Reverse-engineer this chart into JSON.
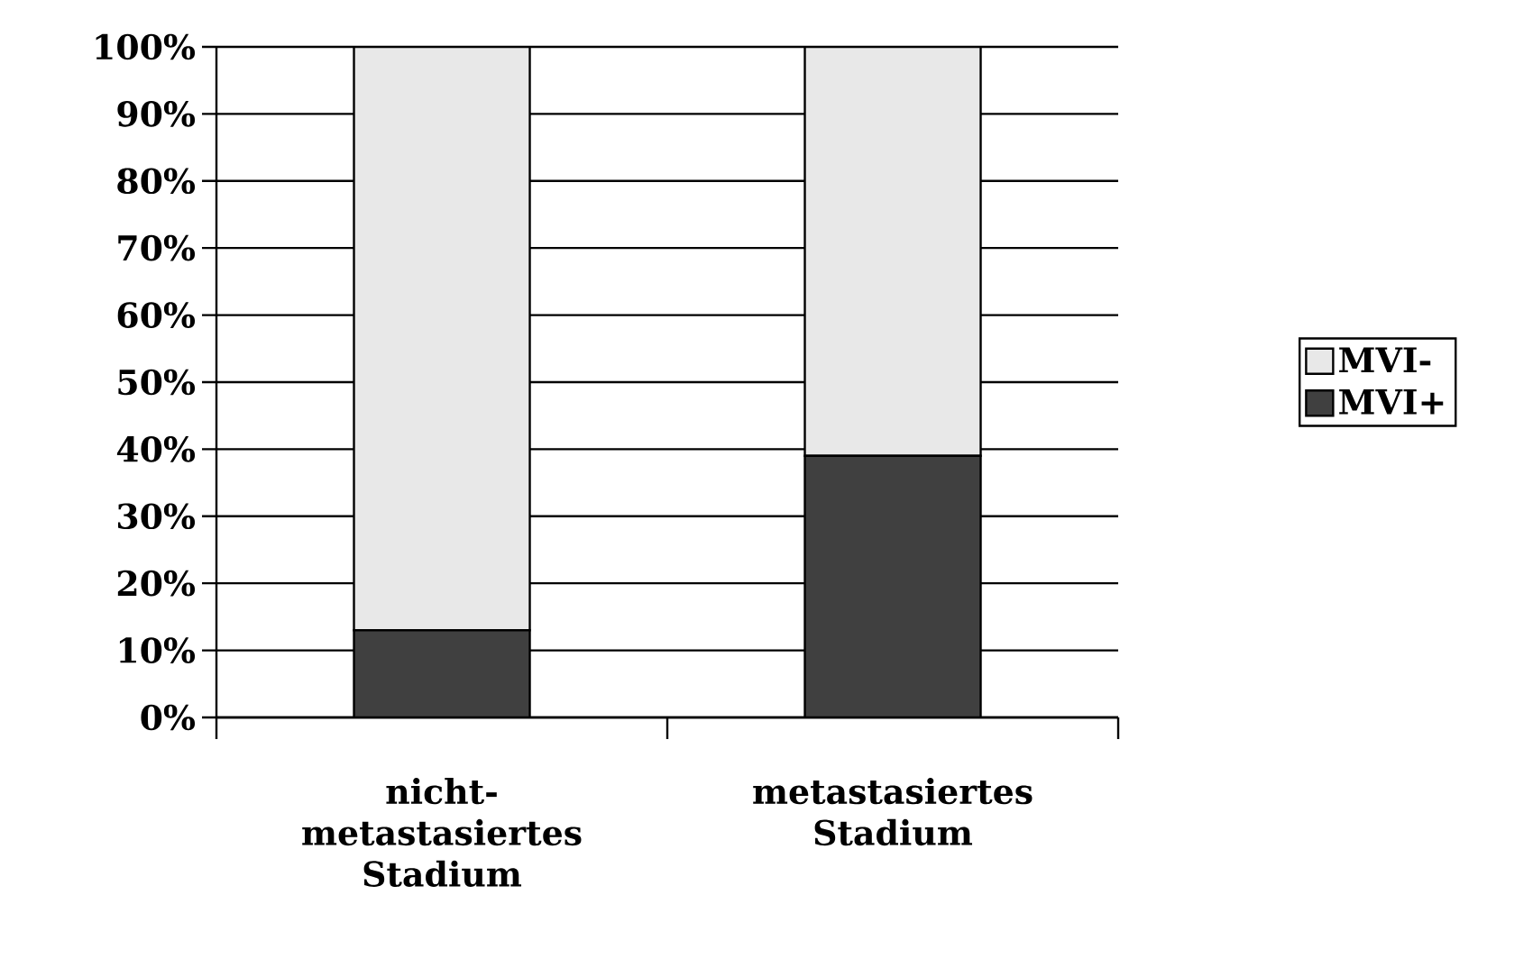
{
  "chart_data": {
    "type": "bar",
    "stacked": true,
    "categories": [
      "nicht-metastasiertes Stadium",
      "metastasiertes Stadium"
    ],
    "series": [
      {
        "name": "MVI+",
        "color": "#404040",
        "values": [
          13,
          39
        ]
      },
      {
        "name": "MVI-",
        "color": "#e8e8e8",
        "values": [
          87,
          61
        ]
      }
    ],
    "ylim": [
      0,
      100
    ],
    "yticks": [
      {
        "value": 0,
        "label": "0%"
      },
      {
        "value": 10,
        "label": "10%"
      },
      {
        "value": 20,
        "label": "20%"
      },
      {
        "value": 30,
        "label": "30%"
      },
      {
        "value": 40,
        "label": "40%"
      },
      {
        "value": 50,
        "label": "50%"
      },
      {
        "value": 60,
        "label": "60%"
      },
      {
        "value": 70,
        "label": "70%"
      },
      {
        "value": 80,
        "label": "80%"
      },
      {
        "value": 90,
        "label": "90%"
      },
      {
        "value": 100,
        "label": "100%"
      }
    ],
    "grid": "y",
    "legend": "right"
  }
}
